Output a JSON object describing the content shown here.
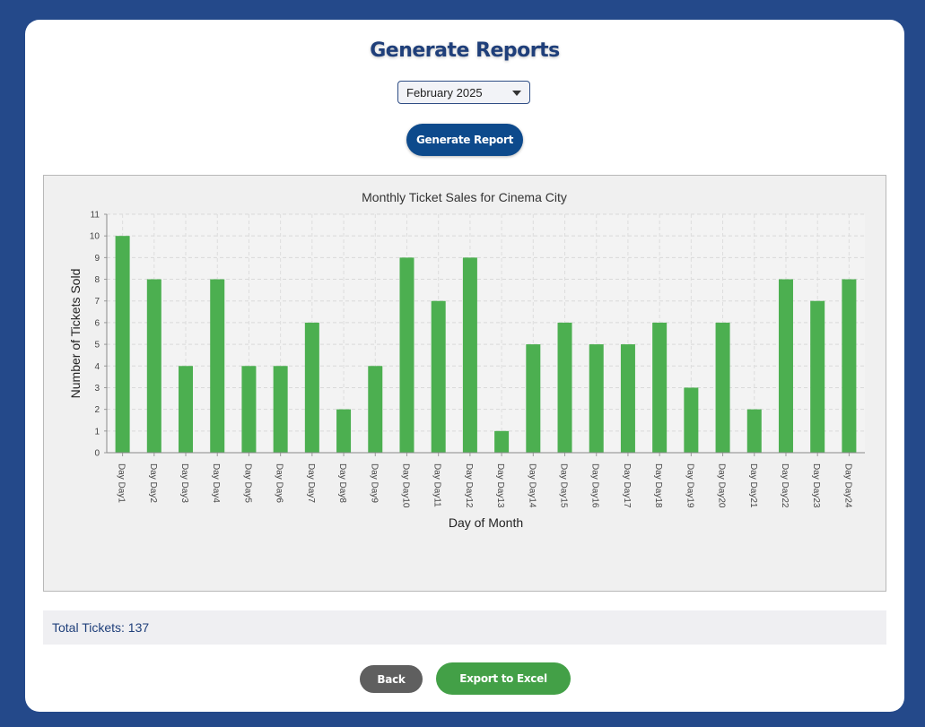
{
  "header": {
    "title": "Generate Reports"
  },
  "month_select": {
    "value": "February 2025"
  },
  "actions": {
    "generate_label": "Generate Report",
    "back_label": "Back",
    "export_label": "Export to Excel"
  },
  "summary": {
    "total_text": "Total Tickets: 137"
  },
  "colors": {
    "background": "#24498a",
    "primary_button": "#0d4a8c",
    "bar": "#4caf50",
    "export_button": "#43a047",
    "back_button": "#5f5f5f"
  },
  "chart_data": {
    "type": "bar",
    "title": "Monthly Ticket Sales for Cinema City",
    "xlabel": "Day of Month",
    "ylabel": "Number of Tickets Sold",
    "categories": [
      "Day Day1",
      "Day Day2",
      "Day Day3",
      "Day Day4",
      "Day Day5",
      "Day Day6",
      "Day Day7",
      "Day Day8",
      "Day Day9",
      "Day Day10",
      "Day Day11",
      "Day Day12",
      "Day Day13",
      "Day Day14",
      "Day Day15",
      "Day Day16",
      "Day Day17",
      "Day Day18",
      "Day Day19",
      "Day Day20",
      "Day Day21",
      "Day Day22",
      "Day Day23",
      "Day Day24"
    ],
    "values": [
      10,
      8,
      4,
      8,
      4,
      4,
      6,
      2,
      4,
      9,
      7,
      9,
      1,
      5,
      6,
      5,
      5,
      6,
      3,
      6,
      2,
      8,
      7,
      8
    ],
    "ylim": [
      0,
      11
    ],
    "yticks": [
      "0",
      "1",
      "2",
      "3",
      "4",
      "5",
      "6",
      "7",
      "8",
      "9",
      "10",
      "11"
    ],
    "grid": true
  }
}
